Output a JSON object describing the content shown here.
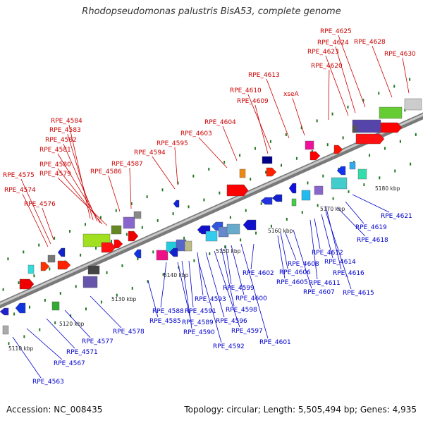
{
  "title": "Rhodopseudomonas palustris BisA53, complete genome",
  "footer": {
    "accession": "Accession: NC_008435",
    "summary": "Topology: circular; Length: 5,505,494 bp; Genes: 4,935"
  },
  "colors": {
    "upper_label": "#cc0000",
    "lower_label": "#0000cc",
    "backbone": "#888888",
    "tick": "#227722"
  },
  "scale_ticks": [
    "5110 kbp",
    "5120 kbp",
    "5130 kbp",
    "5140 kbp",
    "5150 kbp",
    "5160 kbp",
    "5170 kbp",
    "5180 kbp"
  ],
  "upper_genes": [
    "RPE_4575",
    "RPE_4574",
    "RPE_4576",
    "RPE_4584",
    "RPE_4583",
    "RPE_4582",
    "RPE_4581",
    "RPE_4580",
    "RPE_4579",
    "RPE_4587",
    "RPE_4586",
    "RPE_4594",
    "RPE_4595",
    "RPE_4603",
    "RPE_4604",
    "RPE_4610",
    "RPE_4609",
    "RPE_4613",
    "xseA",
    "RPE_4620",
    "RPE_4623",
    "RPE_4624",
    "RPE_4625",
    "RPE_4628",
    "RPE_4630"
  ],
  "lower_genes": [
    "RPE_4563",
    "RPE_4567",
    "RPE_4571",
    "RPE_4577",
    "RPE_4578",
    "RPE_4585",
    "RPE_4588",
    "RPE_4589",
    "RPE_4590",
    "RPE_4591",
    "RPE_4592",
    "RPE_4593",
    "RPE_4596",
    "RPE_4597",
    "RPE_4598",
    "RPE_4599",
    "RPE_4600",
    "RPE_4601",
    "RPE_4602",
    "RPE_4605",
    "RPE_4606",
    "RPE_4607",
    "RPE_4608",
    "RPE_4611",
    "RPE_4612",
    "RPE_4614",
    "RPE_4615",
    "RPE_4616",
    "RPE_4618",
    "RPE_4619",
    "RPE_4621"
  ]
}
